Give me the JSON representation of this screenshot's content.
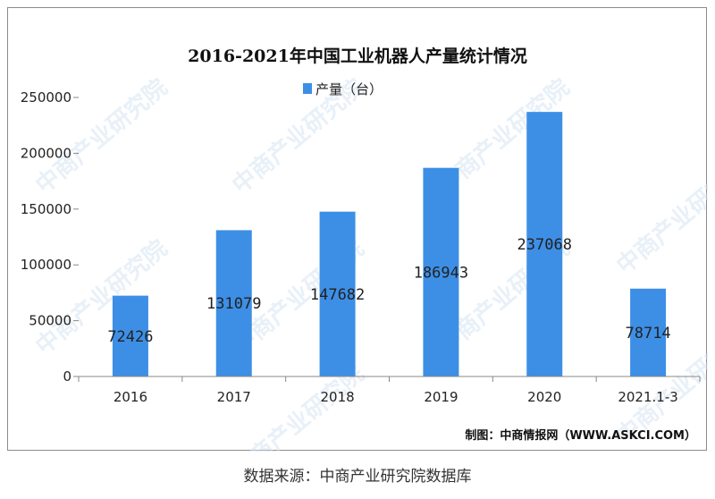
{
  "chart_data": {
    "type": "bar",
    "title": "2016-2021年中国工业机器人产量统计情况",
    "categories": [
      "2016",
      "2017",
      "2018",
      "2019",
      "2020",
      "2021.1-3"
    ],
    "series": [
      {
        "name": "产量（台）",
        "values": [
          72426,
          131079,
          147682,
          186943,
          237068,
          78714
        ]
      }
    ],
    "ylim": [
      0,
      250000
    ],
    "yticks": [
      0,
      50000,
      100000,
      150000,
      200000,
      250000
    ],
    "grid": false,
    "legend": "top-center",
    "bar_color": "#3d8fe6",
    "data_labels": true
  },
  "credit": "制图：中商情报网（WWW.ASKCI.COM）",
  "watermark": "中商产业研究院",
  "source_note": "数据来源：中商产业研究院数据库"
}
